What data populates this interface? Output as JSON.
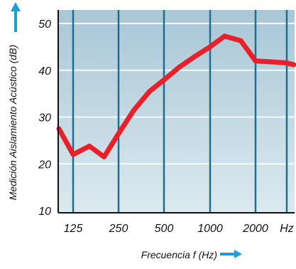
{
  "chart_data": {
    "type": "line",
    "xlabel": "Frecuencia f (Hz)",
    "ylabel": "Medición Aislamiento Acústico (dB)",
    "x_tick_labels": [
      "125",
      "250",
      "500",
      "1000",
      "2000",
      "Hz"
    ],
    "x_tick_values": [
      125,
      250,
      500,
      1000,
      2000
    ],
    "x_scale": "log",
    "xlim": [
      100,
      4000
    ],
    "y_tick_labels": [
      "10",
      "20",
      "30",
      "40",
      "50"
    ],
    "y_tick_values": [
      10,
      20,
      30,
      40,
      50
    ],
    "ylim": [
      10,
      53
    ],
    "grid": true,
    "series": [
      {
        "x": [
          100,
          125,
          160,
          200,
          250,
          315,
          400,
          500,
          630,
          800,
          1000,
          1250,
          1600,
          2000,
          2500,
          3150,
          3800
        ],
        "values": [
          27.5,
          22,
          23.8,
          21.5,
          26.5,
          31.5,
          35.5,
          38,
          40.7,
          43,
          45,
          47.3,
          46.3,
          42,
          41.8,
          41.6,
          41.2
        ]
      }
    ],
    "colors": {
      "line": "#e8202a",
      "vertical_grid": "#1e6f8f",
      "axis": "#111111",
      "arrow": "#1aa0d8",
      "background_top": "#a9c7d6",
      "background_bottom": "#dce9ef"
    }
  }
}
